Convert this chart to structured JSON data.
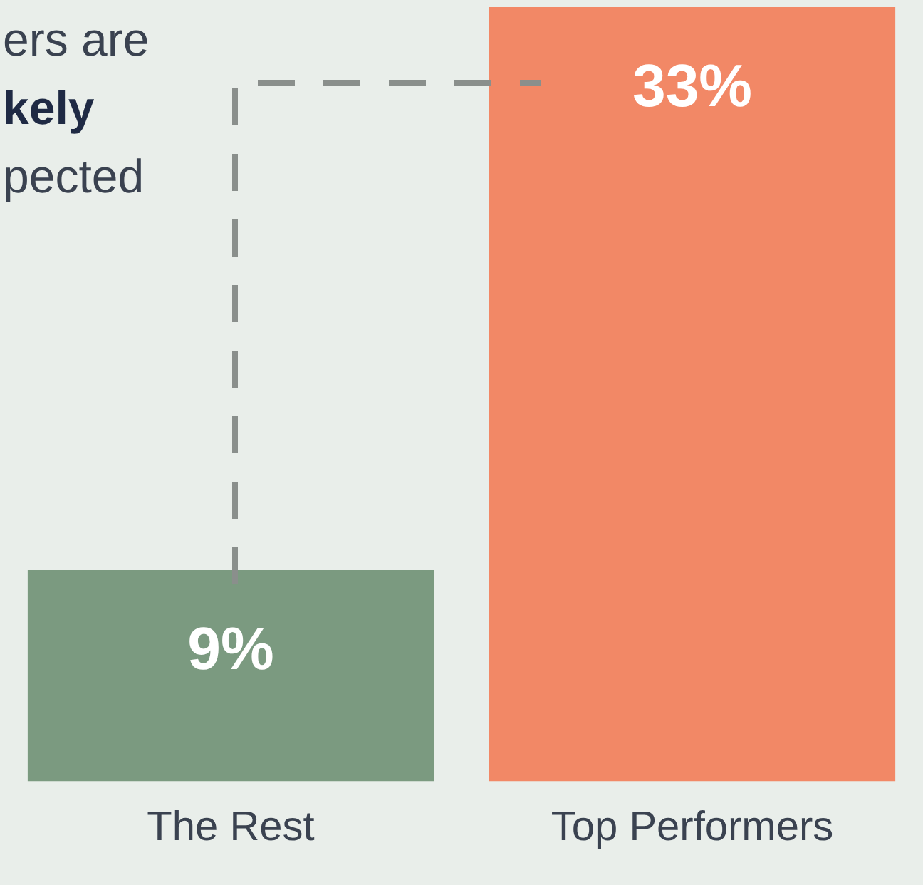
{
  "chart_data": {
    "type": "bar",
    "categories": [
      "The Rest",
      "Top Performers"
    ],
    "values": [
      9,
      33
    ],
    "colors": [
      "#7b9a80",
      "#f28866"
    ],
    "value_labels": [
      "9%",
      "33%"
    ],
    "grid": false,
    "legend": false,
    "tick_labels": "x",
    "annotations": [
      "ers are",
      "kely",
      "pected"
    ]
  }
}
